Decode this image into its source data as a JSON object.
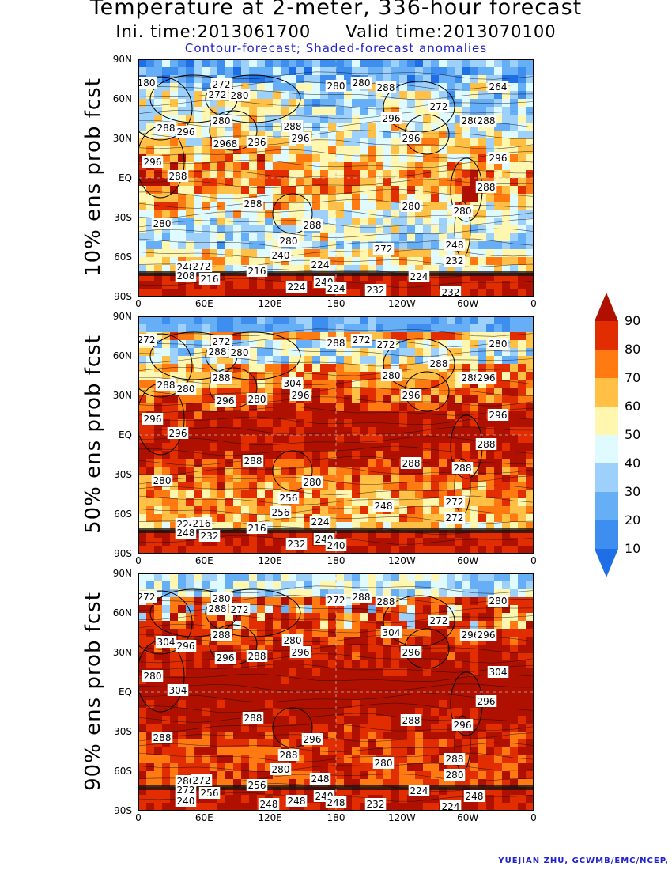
{
  "header": {
    "title": "Temperature at 2-meter, 336-hour forecast",
    "init_time": "Ini. time:2013061700",
    "valid_time": "Valid time:2013070100",
    "note": "Contour-forecast; Shaded-forecast anomalies"
  },
  "lat_ticks": [
    "90N",
    "60N",
    "30N",
    "EQ",
    "30S",
    "60S",
    "90S"
  ],
  "lon_ticks": [
    "0",
    "60E",
    "120E",
    "180",
    "120W",
    "60W",
    "0"
  ],
  "panels": [
    {
      "label": "10% ens prob fcst",
      "level": 10,
      "contour_labels": [
        "180",
        "272",
        "280",
        "280",
        "280",
        "288",
        "272",
        "264",
        "272",
        "280",
        "288",
        "280",
        "288",
        "288",
        "296",
        "2968",
        "296",
        "296",
        "296",
        "288",
        "296",
        "296",
        "296",
        "288",
        "280",
        "288",
        "288",
        "280",
        "280",
        "280",
        "272",
        "248",
        "240",
        "232",
        "248",
        "272",
        "216",
        "224",
        "208",
        "216",
        "240",
        "224",
        "224",
        "232",
        "224",
        "232"
      ]
    },
    {
      "label": "50% ens prob fcst",
      "level": 50,
      "contour_labels": [
        "272",
        "272",
        "280",
        "288",
        "272",
        "272",
        "288",
        "280",
        "288",
        "288",
        "296",
        "288",
        "304",
        "288",
        "280",
        "296",
        "280",
        "296",
        "296",
        "296",
        "296",
        "280",
        "296",
        "288",
        "288",
        "288",
        "280",
        "288",
        "280",
        "256",
        "248",
        "272",
        "256",
        "272",
        "224",
        "216",
        "216",
        "224",
        "248",
        "232",
        "240",
        "232",
        "240"
      ]
    },
    {
      "label": "90% ens prob fcst",
      "level": 90,
      "contour_labels": [
        "272",
        "280",
        "272",
        "272",
        "288",
        "288",
        "288",
        "280",
        "272",
        "296",
        "296",
        "288",
        "280",
        "304",
        "296",
        "296",
        "288",
        "296",
        "280",
        "304",
        "296",
        "304",
        "304",
        "296",
        "288",
        "288",
        "296",
        "296",
        "288",
        "288",
        "280",
        "288",
        "280",
        "280",
        "280",
        "272",
        "256",
        "248",
        "272",
        "256",
        "240",
        "248",
        "248",
        "232",
        "224",
        "224",
        "248",
        "240",
        "248"
      ]
    }
  ],
  "colorbar": {
    "levels": [
      "10",
      "20",
      "30",
      "40",
      "50",
      "60",
      "70",
      "80",
      "90"
    ],
    "colors": [
      "#1e6fe6",
      "#3e8ef0",
      "#66aef5",
      "#9dd0fa",
      "#e0fbff",
      "#fff6b0",
      "#ffc045",
      "#ff7a10",
      "#e22d00",
      "#b01000"
    ]
  },
  "credit": "YUEJIAN ZHU, GCWMB/EMC/NCEP,"
}
